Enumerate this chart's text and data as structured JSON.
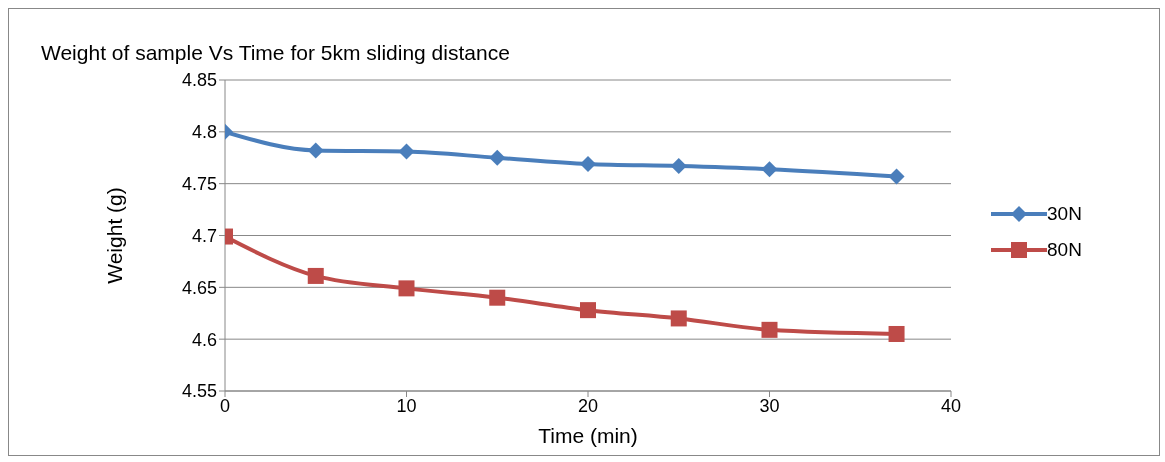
{
  "chart_data": {
    "type": "line",
    "title": "Weight of sample Vs Time for 5km sliding distance",
    "xlabel": "Time (min)",
    "ylabel": "Weight (g)",
    "x": [
      0,
      5,
      10,
      15,
      20,
      25,
      30,
      37
    ],
    "series": [
      {
        "name": "30N",
        "color": "#4a7ebb",
        "marker": "diamond",
        "values": [
          4.8,
          4.782,
          4.781,
          4.775,
          4.769,
          4.767,
          4.764,
          4.757
        ]
      },
      {
        "name": "80N",
        "color": "#be4b48",
        "marker": "square",
        "values": [
          4.699,
          4.661,
          4.649,
          4.64,
          4.628,
          4.62,
          4.609,
          4.605
        ]
      }
    ],
    "xlim": [
      0,
      40
    ],
    "xticks": [
      0,
      10,
      20,
      30,
      40
    ],
    "ylim": [
      4.55,
      4.85
    ],
    "yticks": [
      4.55,
      4.6,
      4.65,
      4.7,
      4.75,
      4.8,
      4.85
    ],
    "grid": "y",
    "legend": "right",
    "line_style": "solid"
  }
}
